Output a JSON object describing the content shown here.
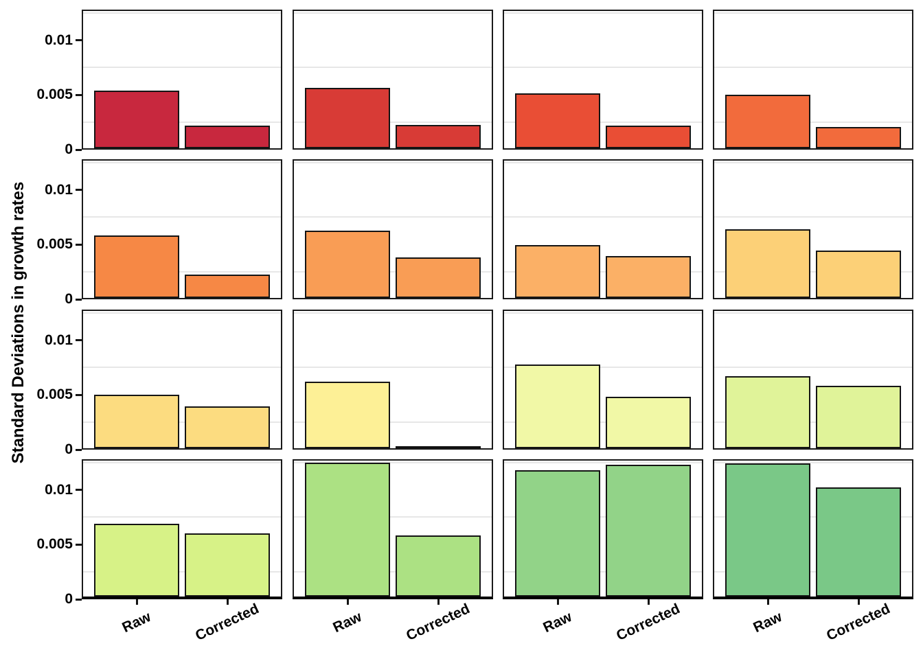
{
  "chart_data": {
    "type": "bar",
    "title": "",
    "ylabel": "Standard Deviations in growth rates",
    "xlabel": "",
    "categories": [
      "Raw",
      "Corrected"
    ],
    "yticks": [
      0,
      0.005,
      0.01
    ],
    "ytick_labels": [
      "0",
      "0.005",
      "0.01"
    ],
    "minor_gridlines": [
      0.0025,
      0.0075,
      0.0125
    ],
    "ylim": [
      0,
      0.0128
    ],
    "grid": "minor-only",
    "legend_position": "none",
    "facet_grid": {
      "rows": 4,
      "cols": 4,
      "strip_labels": "none"
    },
    "facets": [
      {
        "row": 1,
        "col": 1,
        "fill": "#C8283E",
        "values": {
          "Raw": 0.0054,
          "Corrected": 0.0021
        }
      },
      {
        "row": 1,
        "col": 2,
        "fill": "#D83B36",
        "values": {
          "Raw": 0.0056,
          "Corrected": 0.0022
        }
      },
      {
        "row": 1,
        "col": 3,
        "fill": "#E94E35",
        "values": {
          "Raw": 0.0051,
          "Corrected": 0.0021
        }
      },
      {
        "row": 1,
        "col": 4,
        "fill": "#F26B3C",
        "values": {
          "Raw": 0.005,
          "Corrected": 0.002
        }
      },
      {
        "row": 2,
        "col": 1,
        "fill": "#F68845",
        "values": {
          "Raw": 0.0058,
          "Corrected": 0.0022
        }
      },
      {
        "row": 2,
        "col": 2,
        "fill": "#F99D55",
        "values": {
          "Raw": 0.0063,
          "Corrected": 0.0038
        }
      },
      {
        "row": 2,
        "col": 3,
        "fill": "#FBB066",
        "values": {
          "Raw": 0.0049,
          "Corrected": 0.0039
        }
      },
      {
        "row": 2,
        "col": 4,
        "fill": "#FCD077",
        "values": {
          "Raw": 0.0064,
          "Corrected": 0.0044
        }
      },
      {
        "row": 3,
        "col": 1,
        "fill": "#FCDC80",
        "values": {
          "Raw": 0.005,
          "Corrected": 0.0039
        }
      },
      {
        "row": 3,
        "col": 2,
        "fill": "#FDF096",
        "values": {
          "Raw": 0.0062,
          "Corrected": 0.0001
        }
      },
      {
        "row": 3,
        "col": 3,
        "fill": "#F1F8A6",
        "values": {
          "Raw": 0.0078,
          "Corrected": 0.0048
        }
      },
      {
        "row": 3,
        "col": 4,
        "fill": "#E0F399",
        "values": {
          "Raw": 0.0067,
          "Corrected": 0.0058
        }
      },
      {
        "row": 4,
        "col": 1,
        "fill": "#D7F287",
        "values": {
          "Raw": 0.0068,
          "Corrected": 0.0059
        }
      },
      {
        "row": 4,
        "col": 2,
        "fill": "#ACE183",
        "values": {
          "Raw": 0.0125,
          "Corrected": 0.0057
        }
      },
      {
        "row": 4,
        "col": 3,
        "fill": "#92D388",
        "values": {
          "Raw": 0.0118,
          "Corrected": 0.0123
        }
      },
      {
        "row": 4,
        "col": 4,
        "fill": "#7AC887",
        "values": {
          "Raw": 0.0124,
          "Corrected": 0.0102
        }
      }
    ]
  }
}
